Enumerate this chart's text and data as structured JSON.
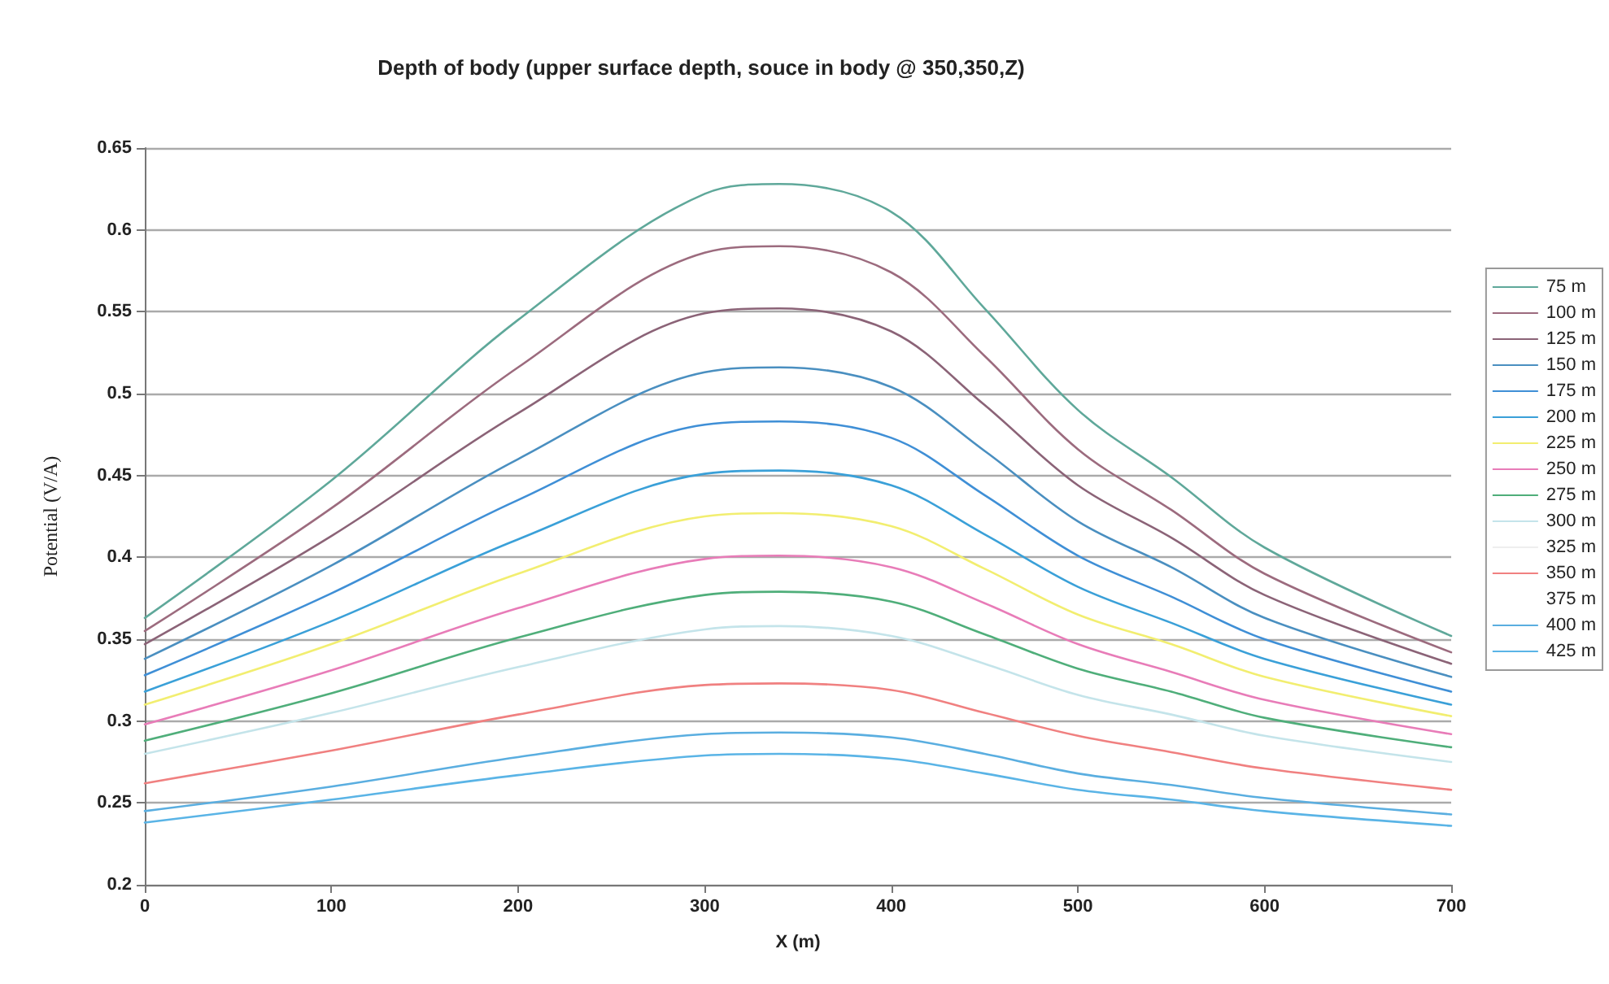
{
  "chart_data": {
    "type": "line",
    "title": "Depth of body (upper surface depth, souce in body @ 350,350,Z)",
    "xlabel": "X (m)",
    "ylabel": "Potential (V/A)",
    "x": [
      0,
      100,
      200,
      300,
      340,
      400,
      450,
      500,
      550,
      600,
      700
    ],
    "xlim": [
      0,
      700
    ],
    "xticks": [
      0,
      100,
      200,
      300,
      400,
      500,
      600,
      700
    ],
    "ylim": [
      0.2,
      0.65
    ],
    "yticks": [
      0.2,
      0.25,
      0.3,
      0.35,
      0.4,
      0.45,
      0.5,
      0.55,
      0.6,
      0.65
    ],
    "grid": "y",
    "legend": "right",
    "marker": "none",
    "line_style": "solid",
    "series": [
      {
        "name": "75 m",
        "color": "#5fa89a",
        "values": [
          0.363,
          0.447,
          0.545,
          0.622,
          0.628,
          0.611,
          0.552,
          0.49,
          0.449,
          0.406,
          0.352
        ]
      },
      {
        "name": "100 m",
        "color": "#9c6b7e",
        "values": [
          0.355,
          0.43,
          0.516,
          0.586,
          0.59,
          0.574,
          0.523,
          0.466,
          0.429,
          0.39,
          0.342
        ]
      },
      {
        "name": "125 m",
        "color": "#8b6377",
        "values": [
          0.347,
          0.413,
          0.488,
          0.549,
          0.552,
          0.538,
          0.493,
          0.444,
          0.412,
          0.377,
          0.335
        ]
      },
      {
        "name": "150 m",
        "color": "#4a8fc0",
        "values": [
          0.338,
          0.395,
          0.46,
          0.513,
          0.516,
          0.504,
          0.465,
          0.422,
          0.394,
          0.363,
          0.327
        ]
      },
      {
        "name": "175 m",
        "color": "#3f8fd6",
        "values": [
          0.328,
          0.378,
          0.435,
          0.481,
          0.483,
          0.473,
          0.438,
          0.401,
          0.376,
          0.35,
          0.318
        ]
      },
      {
        "name": "200 m",
        "color": "#3aa0d8",
        "values": [
          0.318,
          0.361,
          0.411,
          0.451,
          0.453,
          0.444,
          0.414,
          0.382,
          0.36,
          0.338,
          0.31
        ]
      },
      {
        "name": "225 m",
        "color": "#f2ee70",
        "values": [
          0.31,
          0.347,
          0.39,
          0.425,
          0.427,
          0.419,
          0.393,
          0.365,
          0.347,
          0.327,
          0.303
        ]
      },
      {
        "name": "250 m",
        "color": "#e87cb8",
        "values": [
          0.298,
          0.331,
          0.369,
          0.399,
          0.401,
          0.394,
          0.372,
          0.347,
          0.33,
          0.313,
          0.292
        ]
      },
      {
        "name": "275 m",
        "color": "#4fae7a",
        "values": [
          0.288,
          0.317,
          0.351,
          0.377,
          0.379,
          0.373,
          0.353,
          0.332,
          0.318,
          0.302,
          0.284
        ]
      },
      {
        "name": "300 m",
        "color": "#c4e4ea",
        "values": [
          0.28,
          0.305,
          0.333,
          0.356,
          0.358,
          0.352,
          0.335,
          0.316,
          0.304,
          0.291,
          0.275
        ]
      },
      {
        "name": "325 m",
        "color": "#eeeeee",
        "values": [
          null,
          null,
          null,
          null,
          null,
          null,
          null,
          null,
          null,
          null,
          null
        ]
      },
      {
        "name": "350 m",
        "color": "#f08080",
        "values": [
          0.262,
          0.282,
          0.304,
          0.322,
          0.323,
          0.319,
          0.305,
          0.291,
          0.281,
          0.271,
          0.258
        ]
      },
      {
        "name": "375 m",
        "values": [
          null,
          null,
          null,
          null,
          null,
          null,
          null,
          null,
          null,
          null,
          null
        ]
      },
      {
        "name": "400 m",
        "color": "#5aaee0",
        "values": [
          0.245,
          0.26,
          0.278,
          0.292,
          0.293,
          0.29,
          0.28,
          0.268,
          0.261,
          0.253,
          0.243
        ]
      },
      {
        "name": "425 m",
        "color": "#5ab4e6",
        "values": [
          0.238,
          0.252,
          0.267,
          0.279,
          0.28,
          0.277,
          0.268,
          0.258,
          0.252,
          0.245,
          0.236
        ]
      }
    ]
  }
}
